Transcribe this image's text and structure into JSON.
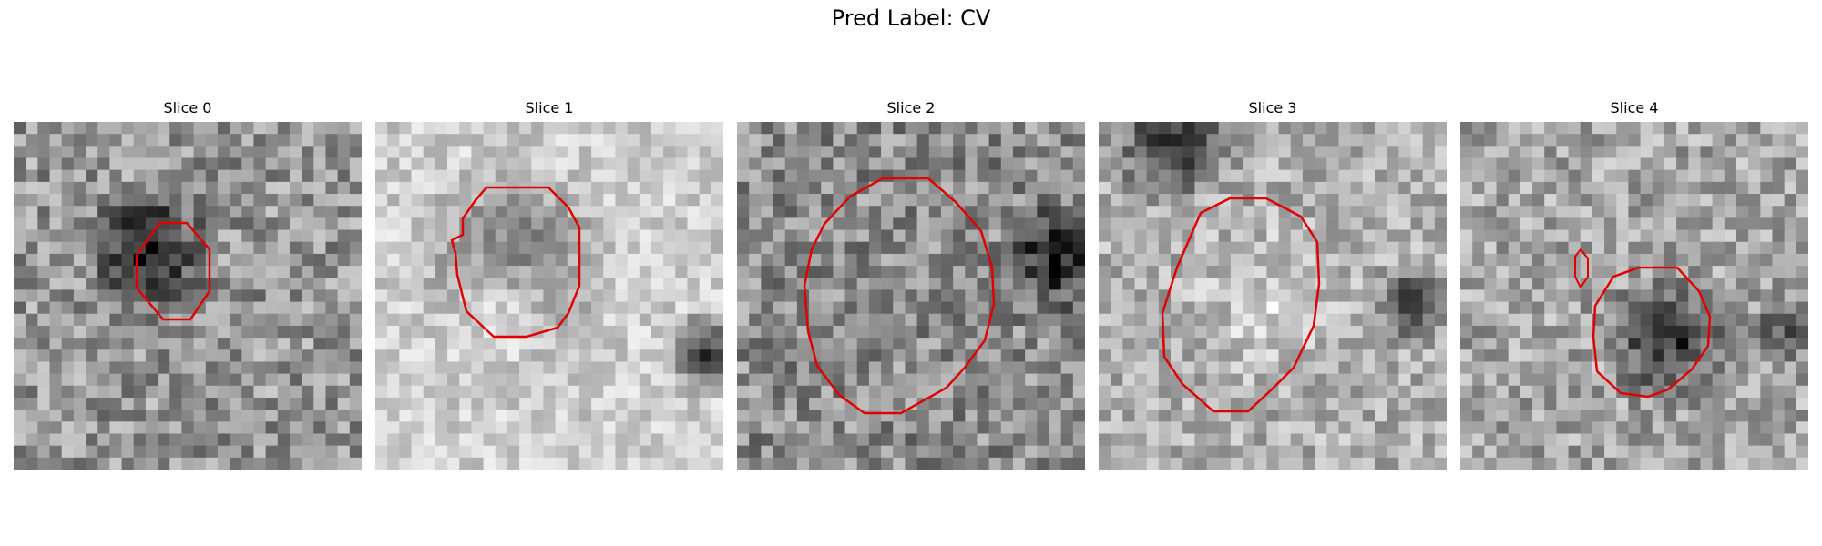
{
  "figure": {
    "title": "Pred Label: CV",
    "panels": [
      {
        "title": "Slice 0"
      },
      {
        "title": "Slice 1"
      },
      {
        "title": "Slice 2"
      },
      {
        "title": "Slice 3"
      },
      {
        "title": "Slice 4"
      }
    ],
    "colors": {
      "contour": "#e00000",
      "background": "#ffffff"
    },
    "colormap": "grayscale"
  }
}
